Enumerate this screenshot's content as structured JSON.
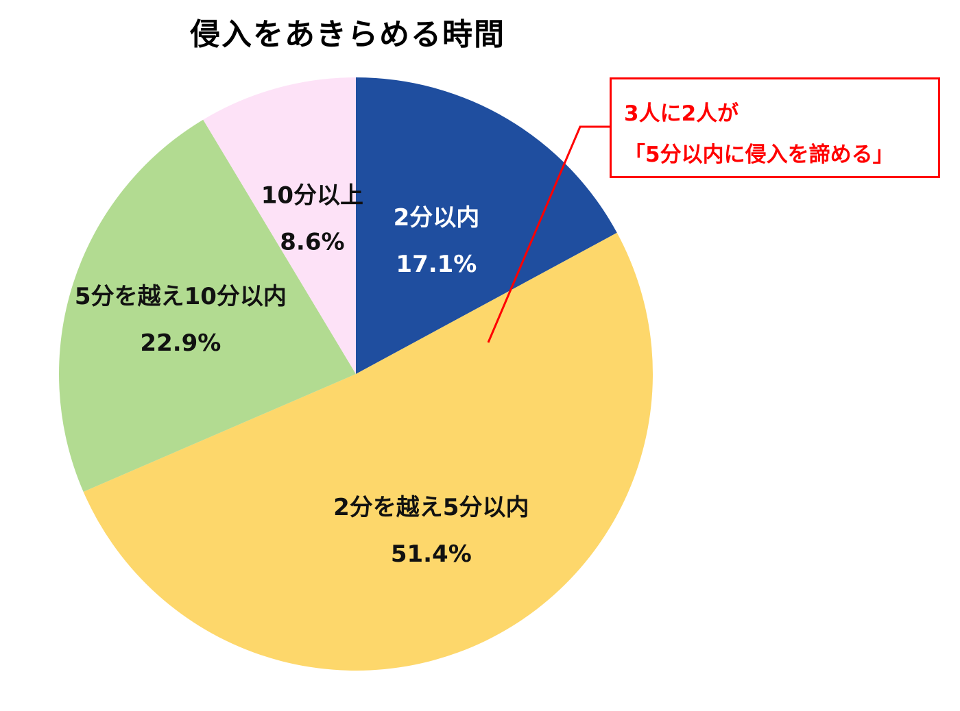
{
  "chart_data": {
    "type": "pie",
    "title": "侵入をあきらめる時間",
    "slices": [
      {
        "label": "2分以内",
        "value": 17.1,
        "value_text": "17.1%",
        "color": "#1f4e9f",
        "text_color": "#ffffff"
      },
      {
        "label": "2分を越え5分以内",
        "value": 51.4,
        "value_text": "51.4%",
        "color": "#fdd76b",
        "text_color": "#111111"
      },
      {
        "label": "5分を越え10分以内",
        "value": 22.9,
        "value_text": "22.9%",
        "color": "#b2db91",
        "text_color": "#111111"
      },
      {
        "label": "10分以上",
        "value": 8.6,
        "value_text": "8.6%",
        "color": "#fde2f7",
        "text_color": "#111111"
      }
    ],
    "start": "12 o'clock",
    "direction": "clockwise",
    "legend": "none",
    "annotation": {
      "lines": [
        "3人に2人が",
        "「5分以内に侵入を諦める」"
      ],
      "color": "#ff0000"
    }
  }
}
